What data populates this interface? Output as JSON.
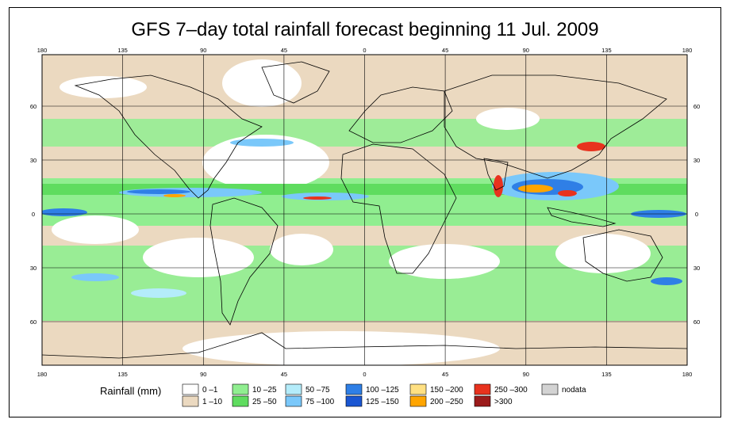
{
  "title": "GFS 7–day total rainfall forecast beginning 11 Jul. 2009",
  "map": {
    "lon_ticks_top": [
      "180",
      "135",
      "90",
      "45",
      "0",
      "45",
      "90",
      "135",
      "180"
    ],
    "lon_ticks_bottom": [
      "180",
      "135",
      "90",
      "45",
      "0",
      "45",
      "90",
      "135",
      "180"
    ],
    "lat_ticks": [
      "60",
      "30",
      "0",
      "30",
      "60"
    ]
  },
  "legend": {
    "title": "Rainfall (mm)",
    "items": [
      {
        "label": "0 –1",
        "color": "#ffffff"
      },
      {
        "label": "1 –10",
        "color": "#ebd9c0"
      },
      {
        "label": "10 –25",
        "color": "#90ee90"
      },
      {
        "label": "25 –50",
        "color": "#5fdc5f"
      },
      {
        "label": "50 –75",
        "color": "#b4ecfa"
      },
      {
        "label": "75 –100",
        "color": "#7ac8fa"
      },
      {
        "label": "100 –125",
        "color": "#2f7fe6"
      },
      {
        "label": "125 –150",
        "color": "#1a56d2"
      },
      {
        "label": "150 –200",
        "color": "#ffe082"
      },
      {
        "label": "200 –250",
        "color": "#ffa500"
      },
      {
        "label": "250 –300",
        "color": "#e8321e"
      },
      {
        "label": ">300",
        "color": "#9b1b1b"
      },
      {
        "label": "nodata",
        "color": "#d3d3d3"
      }
    ]
  }
}
